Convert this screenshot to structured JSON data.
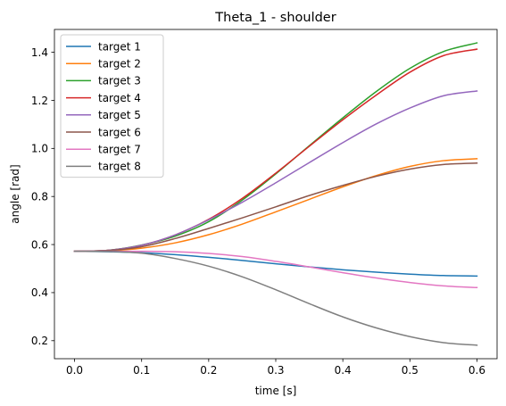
{
  "chart_data": {
    "type": "line",
    "title": "Theta_1 - shoulder",
    "xlabel": "time [s]",
    "ylabel": "angle [rad]",
    "xlim": [
      -0.03,
      0.63
    ],
    "ylim": [
      0.125,
      1.495
    ],
    "xticks": [
      0.0,
      0.1,
      0.2,
      0.3,
      0.4,
      0.5,
      0.6
    ],
    "xtick_labels": [
      "0.0",
      "0.1",
      "0.2",
      "0.3",
      "0.4",
      "0.5",
      "0.6"
    ],
    "yticks": [
      0.2,
      0.4,
      0.6,
      0.8,
      1.0,
      1.2,
      1.4
    ],
    "ytick_labels": [
      "0.2",
      "0.4",
      "0.6",
      "0.8",
      "1.0",
      "1.2",
      "1.4"
    ],
    "grid": false,
    "legend_position": "top-left",
    "x": [
      0.0,
      0.05,
      0.1,
      0.15,
      0.2,
      0.25,
      0.3,
      0.35,
      0.4,
      0.45,
      0.5,
      0.55,
      0.6
    ],
    "series": [
      {
        "name": "target 1",
        "color": "#1f77b4",
        "values": [
          0.572,
          0.57,
          0.566,
          0.558,
          0.547,
          0.534,
          0.52,
          0.507,
          0.495,
          0.485,
          0.477,
          0.471,
          0.469
        ]
      },
      {
        "name": "target 2",
        "color": "#ff7f0e",
        "values": [
          0.572,
          0.574,
          0.585,
          0.607,
          0.641,
          0.685,
          0.736,
          0.788,
          0.84,
          0.887,
          0.925,
          0.949,
          0.957
        ]
      },
      {
        "name": "target 3",
        "color": "#2ca02c",
        "values": [
          0.572,
          0.576,
          0.598,
          0.635,
          0.695,
          0.785,
          0.894,
          1.011,
          1.127,
          1.237,
          1.333,
          1.403,
          1.439
        ]
      },
      {
        "name": "target 4",
        "color": "#d62728",
        "values": [
          0.572,
          0.576,
          0.597,
          0.64,
          0.705,
          0.792,
          0.897,
          1.009,
          1.119,
          1.222,
          1.317,
          1.386,
          1.413
        ]
      },
      {
        "name": "target 5",
        "color": "#9467bd",
        "values": [
          0.572,
          0.576,
          0.597,
          0.64,
          0.703,
          0.776,
          0.857,
          0.941,
          1.024,
          1.102,
          1.168,
          1.219,
          1.239
        ]
      },
      {
        "name": "target 6",
        "color": "#8c564b",
        "values": [
          0.572,
          0.575,
          0.591,
          0.625,
          0.667,
          0.711,
          0.757,
          0.804,
          0.846,
          0.884,
          0.914,
          0.933,
          0.939
        ]
      },
      {
        "name": "target 7",
        "color": "#e377c2",
        "values": [
          0.572,
          0.572,
          0.572,
          0.57,
          0.563,
          0.55,
          0.53,
          0.507,
          0.483,
          0.461,
          0.442,
          0.428,
          0.421
        ]
      },
      {
        "name": "target 8",
        "color": "#7f7f7f",
        "values": [
          0.572,
          0.571,
          0.564,
          0.542,
          0.51,
          0.466,
          0.412,
          0.354,
          0.299,
          0.253,
          0.217,
          0.192,
          0.181
        ]
      }
    ]
  }
}
